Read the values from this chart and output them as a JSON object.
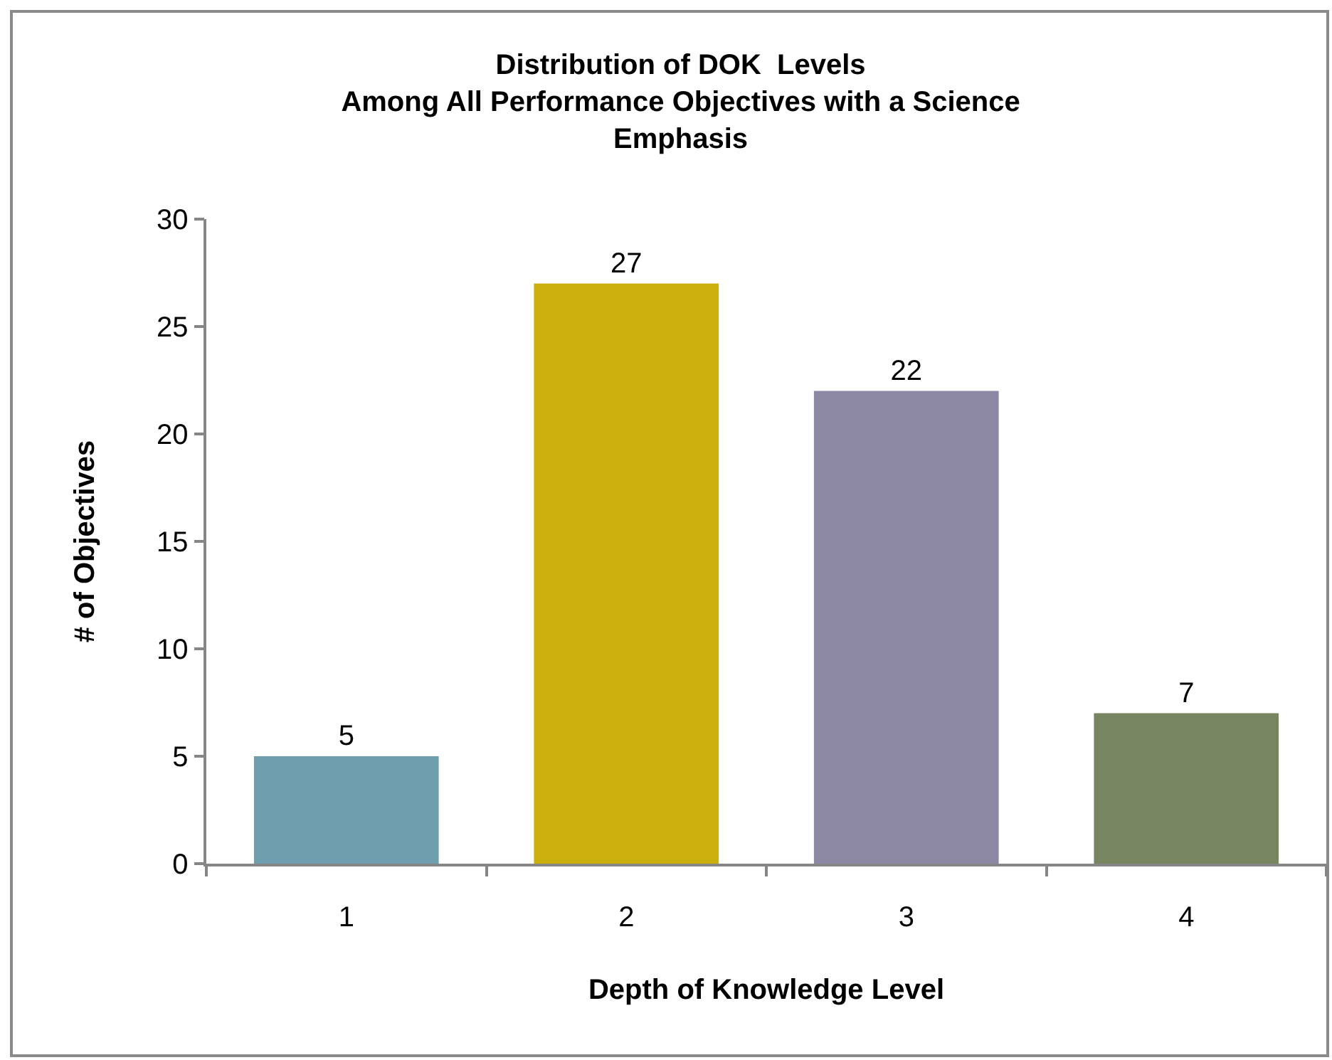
{
  "chart_data": {
    "type": "bar",
    "title": "Distribution of DOK  Levels\nAmong All Performance Objectives with a Science\nEmphasis",
    "xlabel": "Depth of Knowledge Level",
    "ylabel": "# of Objectives",
    "categories": [
      "1",
      "2",
      "3",
      "4"
    ],
    "values": [
      5,
      27,
      22,
      7
    ],
    "colors": [
      "#6f9fae",
      "#cbaf0d",
      "#8c88a4",
      "#778561"
    ],
    "ylim": [
      0,
      30
    ],
    "yticks": [
      0,
      5,
      10,
      15,
      20,
      25,
      30
    ],
    "data_labels": true
  }
}
